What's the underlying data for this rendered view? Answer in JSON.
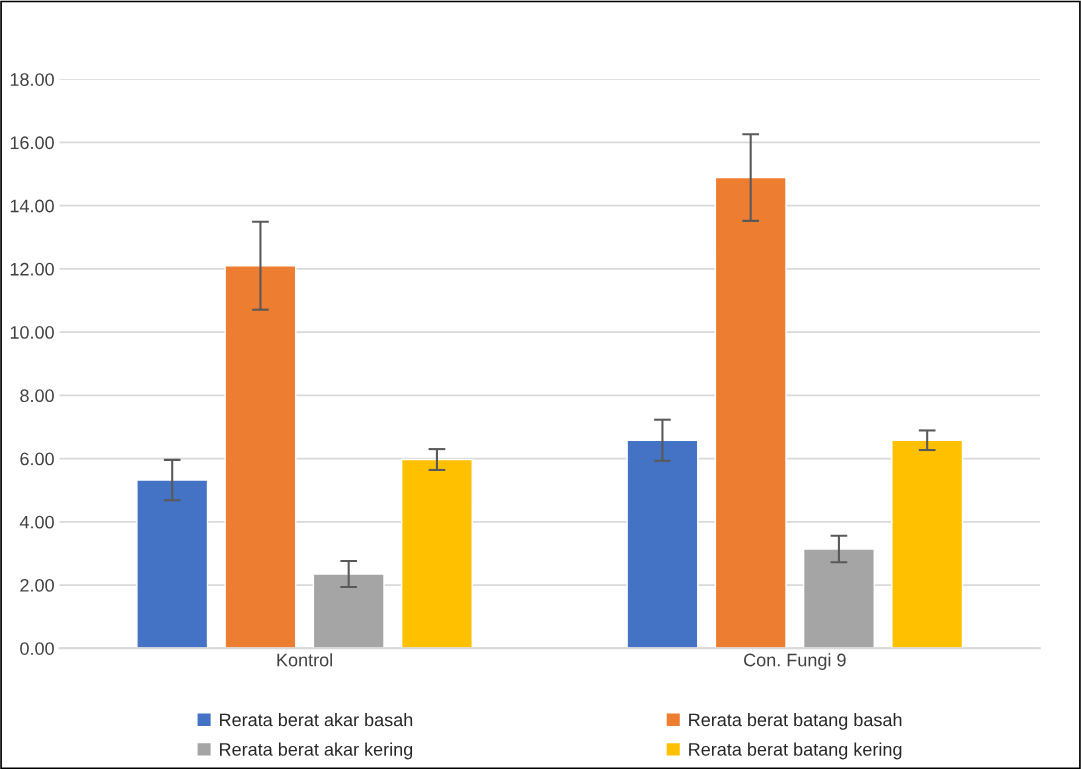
{
  "chart_data": {
    "type": "bar",
    "categories": [
      "Kontrol",
      "Con. Fungi 9"
    ],
    "series": [
      {
        "name": "Rerata berat akar basah",
        "color": "#4472c4",
        "values": [
          5.32,
          6.58
        ],
        "errors": [
          0.64,
          0.65
        ]
      },
      {
        "name": "Rerata berat batang basah",
        "color": "#ed7d31",
        "values": [
          12.1,
          14.89
        ],
        "errors": [
          1.39,
          1.37
        ]
      },
      {
        "name": "Rerata berat akar kering",
        "color": "#a5a5a5",
        "values": [
          2.35,
          3.14
        ],
        "errors": [
          0.41,
          0.42
        ]
      },
      {
        "name": "Rerata berat batang kering",
        "color": "#ffc000",
        "values": [
          5.97,
          6.58
        ],
        "errors": [
          0.33,
          0.31
        ]
      }
    ],
    "ylim": [
      0,
      18
    ],
    "yticks": [
      {
        "value": 0,
        "label": "0.00"
      },
      {
        "value": 2,
        "label": "2.00"
      },
      {
        "value": 4,
        "label": "4.00"
      },
      {
        "value": 6,
        "label": "6.00"
      },
      {
        "value": 8,
        "label": "8.00"
      },
      {
        "value": 10,
        "label": "10.00"
      },
      {
        "value": 12,
        "label": "12.00"
      },
      {
        "value": 14,
        "label": "14.00"
      },
      {
        "value": 16,
        "label": "16.00"
      },
      {
        "value": 18,
        "label": "18.00"
      }
    ],
    "grid": "y",
    "legend": "bottom"
  }
}
